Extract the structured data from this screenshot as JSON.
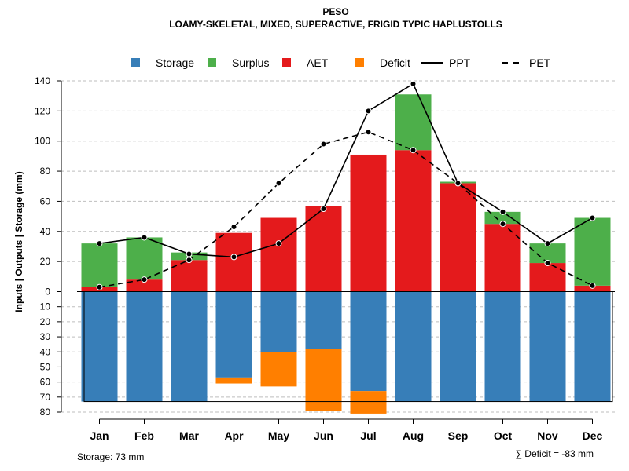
{
  "chart_data": {
    "type": "bar",
    "title": "PESO",
    "subtitle": "LOAMY-SKELETAL, MIXED, SUPERACTIVE, FRIGID TYPIC HAPLUSTOLLS",
    "ylabel": "Inputs | Outputs | Storage    (mm)",
    "categories": [
      "Jan",
      "Feb",
      "Mar",
      "Apr",
      "May",
      "Jun",
      "Jul",
      "Aug",
      "Sep",
      "Oct",
      "Nov",
      "Dec"
    ],
    "upper_ylim": [
      0,
      140
    ],
    "upper_ticks": [
      0,
      20,
      40,
      60,
      80,
      100,
      120,
      140
    ],
    "lower_ylim": [
      0,
      80
    ],
    "lower_ticks": [
      10,
      20,
      30,
      40,
      50,
      60,
      70,
      80
    ],
    "series": [
      {
        "name": "AET",
        "values": [
          3,
          8,
          21,
          39,
          49,
          57,
          91,
          94,
          72,
          45,
          19,
          4
        ]
      },
      {
        "name": "Surplus",
        "values": [
          29,
          28,
          5,
          0,
          0,
          0,
          0,
          37,
          1,
          8,
          13,
          45
        ]
      },
      {
        "name": "Storage",
        "values": [
          73,
          73,
          73,
          57,
          40,
          38,
          66,
          73,
          73,
          73,
          73,
          73
        ]
      },
      {
        "name": "Deficit",
        "values": [
          0,
          0,
          0,
          4,
          23,
          41,
          15,
          0,
          0,
          0,
          0,
          0
        ]
      },
      {
        "name": "PPT",
        "values": [
          32,
          36,
          25,
          23,
          32,
          55,
          120,
          138,
          72,
          53,
          32,
          49
        ]
      },
      {
        "name": "PET",
        "values": [
          3,
          8,
          21,
          43,
          72,
          98,
          106,
          94,
          72,
          45,
          19,
          4
        ]
      }
    ],
    "legend": [
      {
        "label": "Storage",
        "kind": "box",
        "color": "#377EB8"
      },
      {
        "label": "Surplus",
        "kind": "box",
        "color": "#4DAF4A"
      },
      {
        "label": "AET",
        "kind": "box",
        "color": "#E41A1C"
      },
      {
        "label": "Deficit",
        "kind": "box",
        "color": "#FF7F00"
      },
      {
        "label": "PPT",
        "kind": "solid"
      },
      {
        "label": "PET",
        "kind": "dashed"
      }
    ],
    "legend_position": "top",
    "grid": true,
    "storage_capacity_line": 73
  },
  "notes": {
    "storage": "Storage: 73 mm",
    "deficit": "∑ Deficit = -83 mm"
  },
  "colors": {
    "storage": "#377EB8",
    "surplus": "#4DAF4A",
    "aet": "#E41A1C",
    "deficit": "#FF7F00",
    "grid": "#bebebe"
  }
}
